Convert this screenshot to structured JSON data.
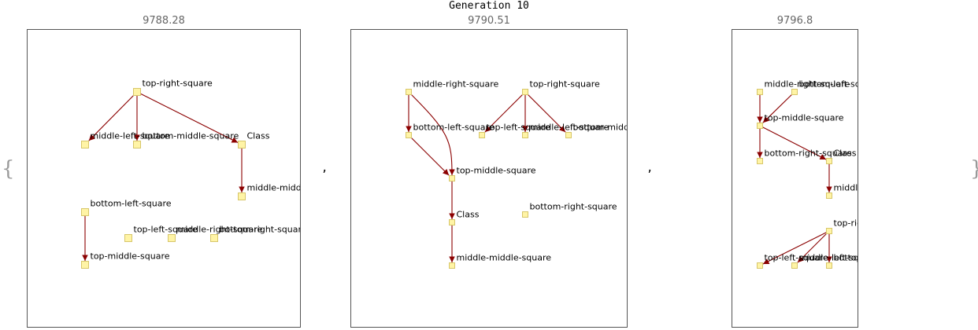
{
  "title": "Generation 10",
  "brace_open": "{",
  "brace_close": "}",
  "separator": ",",
  "colors": {
    "node_fill": "#FFF4A6",
    "node_stroke": "#D7C66A",
    "edge": "#8B0000",
    "frame": "#555555",
    "score_text": "#666666"
  },
  "panels": [
    {
      "score": "9788.28",
      "nodes": [
        "top-right-square",
        "middle-left-square",
        "bottom-middle-square",
        "Class",
        "middle-middle-square",
        "bottom-left-square",
        "top-left-square",
        "middle-right-square",
        "bottom-right-square",
        "top-middle-square"
      ],
      "edges": [
        [
          0,
          1
        ],
        [
          0,
          2
        ],
        [
          0,
          3
        ],
        [
          3,
          4
        ],
        [
          5,
          9
        ]
      ]
    },
    {
      "score": "9790.51",
      "nodes": [
        "middle-right-square",
        "top-right-square",
        "bottom-left-square",
        "top-left-square",
        "middle-left-square",
        "bottom-middle-square",
        "top-middle-square",
        "Class",
        "middle-middle-square",
        "bottom-right-square"
      ],
      "edges": [
        [
          0,
          2
        ],
        [
          0,
          6
        ],
        [
          2,
          6
        ],
        [
          1,
          3
        ],
        [
          1,
          4
        ],
        [
          1,
          5
        ],
        [
          6,
          7
        ],
        [
          7,
          8
        ]
      ]
    },
    {
      "score": "9796.8",
      "nodes": [
        "middle-right-square",
        "bottom-left-square",
        "top-middle-square",
        "bottom-right-square",
        "Class",
        "middle-middle-square",
        "top-right-square",
        "top-left-square",
        "middle-left-square",
        "bottom-middle-square"
      ],
      "edges": [
        [
          0,
          2
        ],
        [
          1,
          2
        ],
        [
          2,
          3
        ],
        [
          2,
          4
        ],
        [
          4,
          5
        ],
        [
          6,
          7
        ],
        [
          6,
          8
        ],
        [
          6,
          9
        ]
      ]
    }
  ]
}
